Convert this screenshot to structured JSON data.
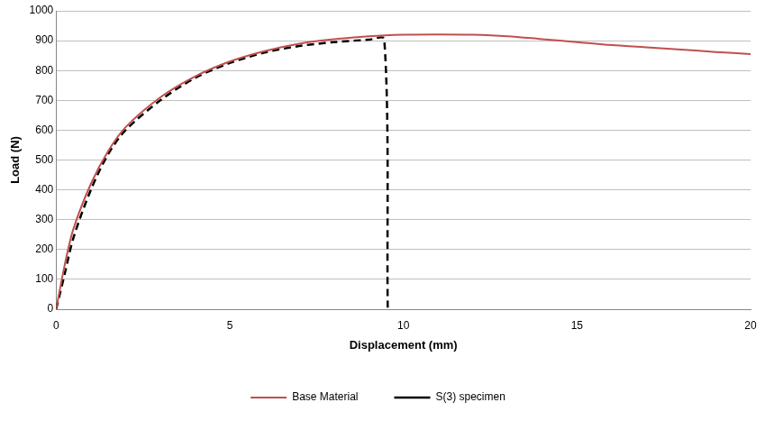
{
  "chart_data": {
    "type": "line",
    "x_label": "Displacement (mm)",
    "y_label": "Load (N)",
    "xlim": [
      0,
      20
    ],
    "xticks": [
      0,
      5,
      10,
      15,
      20
    ],
    "ylim": [
      0,
      1000
    ],
    "yticks": [
      0,
      100,
      200,
      300,
      400,
      500,
      600,
      700,
      800,
      900,
      1000
    ],
    "grid": "y",
    "legend": "bottom",
    "series": [
      {
        "name": "Base Material",
        "color": "#c0504d",
        "line_style": "solid",
        "marker": "none",
        "x": [
          0,
          0.25,
          0.5,
          1,
          1.5,
          2,
          3,
          4,
          5,
          6,
          7,
          8,
          9,
          10,
          11,
          12,
          13,
          14,
          15,
          16,
          17,
          18,
          19,
          20
        ],
        "values": [
          0,
          150,
          270,
          420,
          530,
          610,
          710,
          780,
          830,
          865,
          890,
          905,
          915,
          920,
          921,
          920,
          915,
          905,
          895,
          885,
          878,
          870,
          862,
          855
        ]
      },
      {
        "name": "S(3) specimen",
        "color": "#000000",
        "line_style": "dashed",
        "marker": "none",
        "x": [
          0,
          0.25,
          0.5,
          1,
          1.5,
          2,
          3,
          4,
          5,
          6,
          7,
          8,
          9,
          9.45,
          9.55
        ],
        "values": [
          0,
          120,
          240,
          400,
          520,
          600,
          700,
          775,
          825,
          860,
          882,
          895,
          903,
          905,
          0
        ]
      }
    ]
  }
}
